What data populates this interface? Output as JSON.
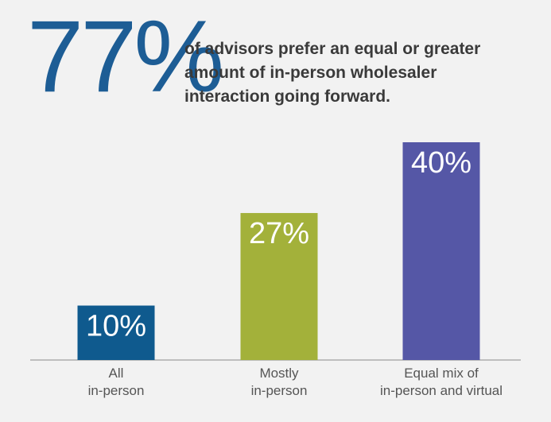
{
  "chart_data": {
    "type": "bar",
    "annotation": "77%",
    "title": "of advisors prefer an equal or greater amount of in-person wholesaler interaction going forward.",
    "categories": [
      "All\nin-person",
      "Mostly\nin-person",
      "Equal mix of\nin-person and virtual"
    ],
    "values": [
      10,
      27,
      40
    ],
    "value_labels": [
      "10%",
      "27%",
      "40%"
    ],
    "colors": [
      "#0f5a8e",
      "#a3b13a",
      "#5557a6"
    ]
  }
}
